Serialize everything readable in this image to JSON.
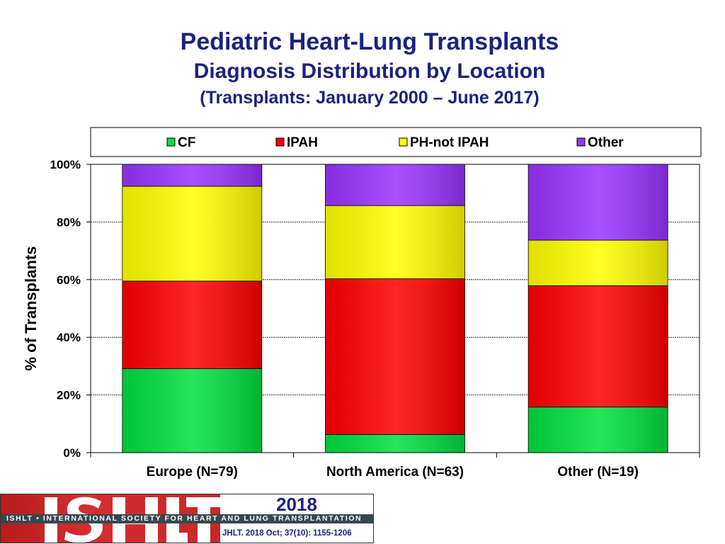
{
  "title": "Pediatric Heart-Lung Transplants",
  "subtitle": "Diagnosis Distribution by Location",
  "subtitle2": "(Transplants: January 2000 – June 2017)",
  "chart_data": {
    "type": "bar",
    "stacked": true,
    "categories": [
      "Europe (N=79)",
      "North America (N=63)",
      "Other (N=19)"
    ],
    "series": [
      {
        "name": "CF",
        "color": "#00e040",
        "values": [
          29.1,
          6.3,
          15.8
        ]
      },
      {
        "name": "IPAH",
        "color": "#ff0000",
        "values": [
          30.4,
          54.0,
          42.1
        ]
      },
      {
        "name": "PH-not IPAH",
        "color": "#ffff00",
        "values": [
          32.9,
          25.4,
          15.8
        ]
      },
      {
        "name": "Other",
        "color": "#9933ff",
        "values": [
          7.6,
          14.3,
          26.3
        ]
      }
    ],
    "ylabel": "% of Transplants",
    "ylim": [
      0,
      100
    ],
    "yticks": [
      "0%",
      "20%",
      "40%",
      "60%",
      "80%",
      "100%"
    ],
    "grid": true,
    "legend": "top"
  },
  "footer": {
    "logo": "ISHLT",
    "society": "ISHLT • INTERNATIONAL SOCIETY FOR HEART AND LUNG TRANSPLANTATION",
    "year": "2018",
    "citation": "JHLT. 2018 Oct; 37(10): 1155-1206"
  }
}
